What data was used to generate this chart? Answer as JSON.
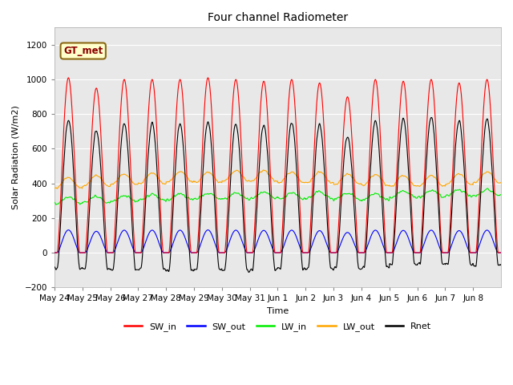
{
  "title": "Four channel Radiometer",
  "xlabel": "Time",
  "ylabel": "Solar Radiation (W/m2)",
  "ylim": [
    -200,
    1300
  ],
  "yticks": [
    -200,
    0,
    200,
    400,
    600,
    800,
    1000,
    1200
  ],
  "annotation": "GT_met",
  "colors": {
    "SW_in": "#ff0000",
    "SW_out": "#0000ff",
    "LW_in": "#00ee00",
    "LW_out": "#ffa500",
    "Rnet": "#000000"
  },
  "x_tick_labels": [
    "May 24",
    "May 25",
    "May 26",
    "May 27",
    "May 28",
    "May 29",
    "May 30",
    "May 31",
    "Jun 1",
    "Jun 2",
    "Jun 3",
    "Jun 4",
    "Jun 5",
    "Jun 6",
    "Jun 7",
    "Jun 8"
  ],
  "num_days": 16,
  "points_per_day": 288,
  "sw_peaks": [
    1010,
    950,
    1000,
    1000,
    1000,
    1010,
    1000,
    990,
    1000,
    980,
    900,
    1000,
    990,
    1000,
    980,
    1000
  ],
  "lw_in_base": [
    285,
    290,
    295,
    300,
    305,
    308,
    310,
    315,
    310,
    315,
    310,
    305,
    320,
    325,
    330,
    330
  ],
  "lw_out_base": [
    375,
    385,
    395,
    400,
    410,
    405,
    415,
    415,
    405,
    405,
    395,
    390,
    385,
    385,
    395,
    405
  ],
  "plot_bg": "#e8e8e8",
  "fig_bg": "#ffffff",
  "grid_color": "#ffffff"
}
